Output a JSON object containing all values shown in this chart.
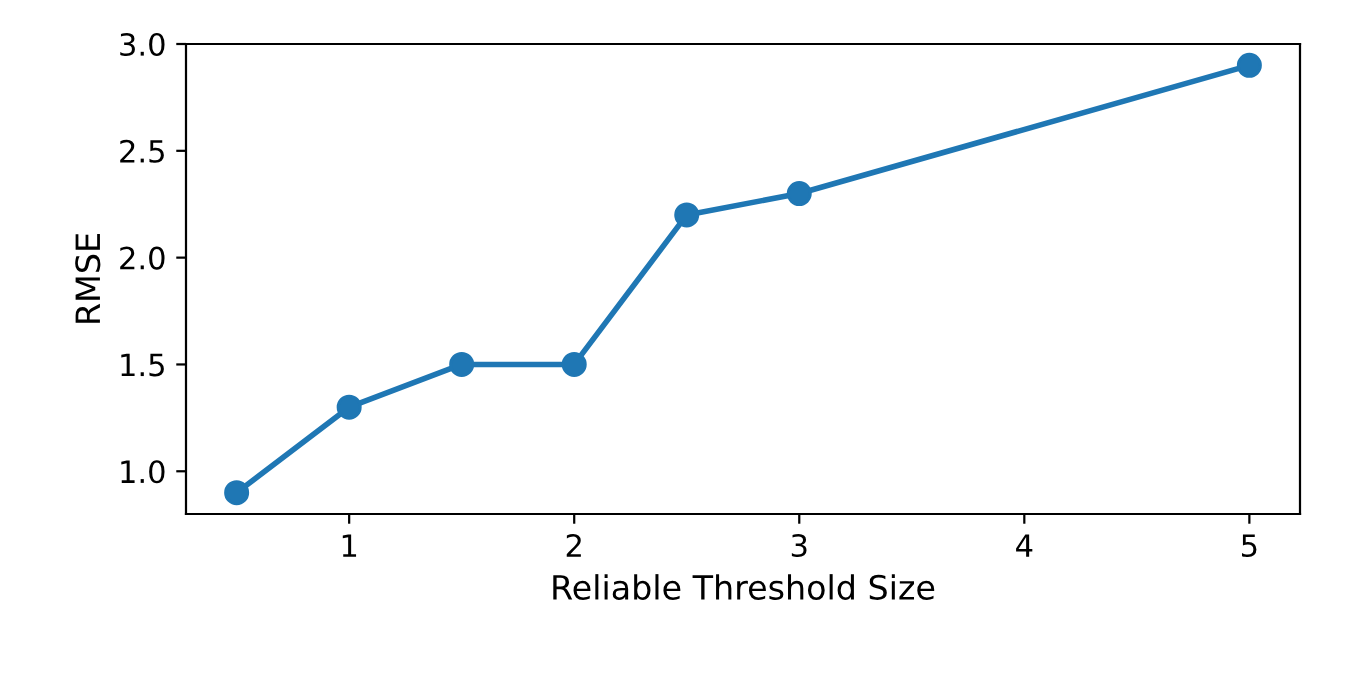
{
  "chart_data": {
    "type": "line",
    "xlabel": "Reliable Threshold Size",
    "ylabel": "RMSE",
    "x": [
      0.5,
      1,
      1.5,
      2,
      2.5,
      3,
      5
    ],
    "series": [
      {
        "color": "#1f77b4",
        "values": [
          0.9,
          1.3,
          1.5,
          1.5,
          2.2,
          2.3,
          2.9
        ]
      }
    ],
    "marker": "circle",
    "line_style": "solid",
    "grid": false,
    "xlim": [
      0.275,
      5.225
    ],
    "xticks": [
      1,
      2,
      3,
      4,
      5
    ],
    "ylim": [
      0.8,
      3.0
    ],
    "yticks": [
      {
        "value": 1.0,
        "label": "1.0"
      },
      {
        "value": 1.5,
        "label": "1.5"
      },
      {
        "value": 2.0,
        "label": "2.0"
      },
      {
        "value": 2.5,
        "label": "2.5"
      },
      {
        "value": 3.0,
        "label": "3.0"
      }
    ]
  }
}
